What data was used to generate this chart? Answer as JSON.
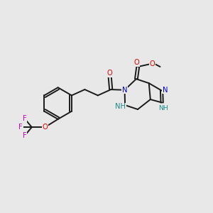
{
  "background_color": "#e8e8e8",
  "bond_color": "#1a1a1a",
  "atom_colors": {
    "O": "#e00000",
    "N": "#0000cc",
    "F": "#cc00cc",
    "H": "#1a8a8a",
    "C": "#1a1a1a"
  },
  "figsize": [
    3.0,
    3.0
  ],
  "dpi": 100
}
